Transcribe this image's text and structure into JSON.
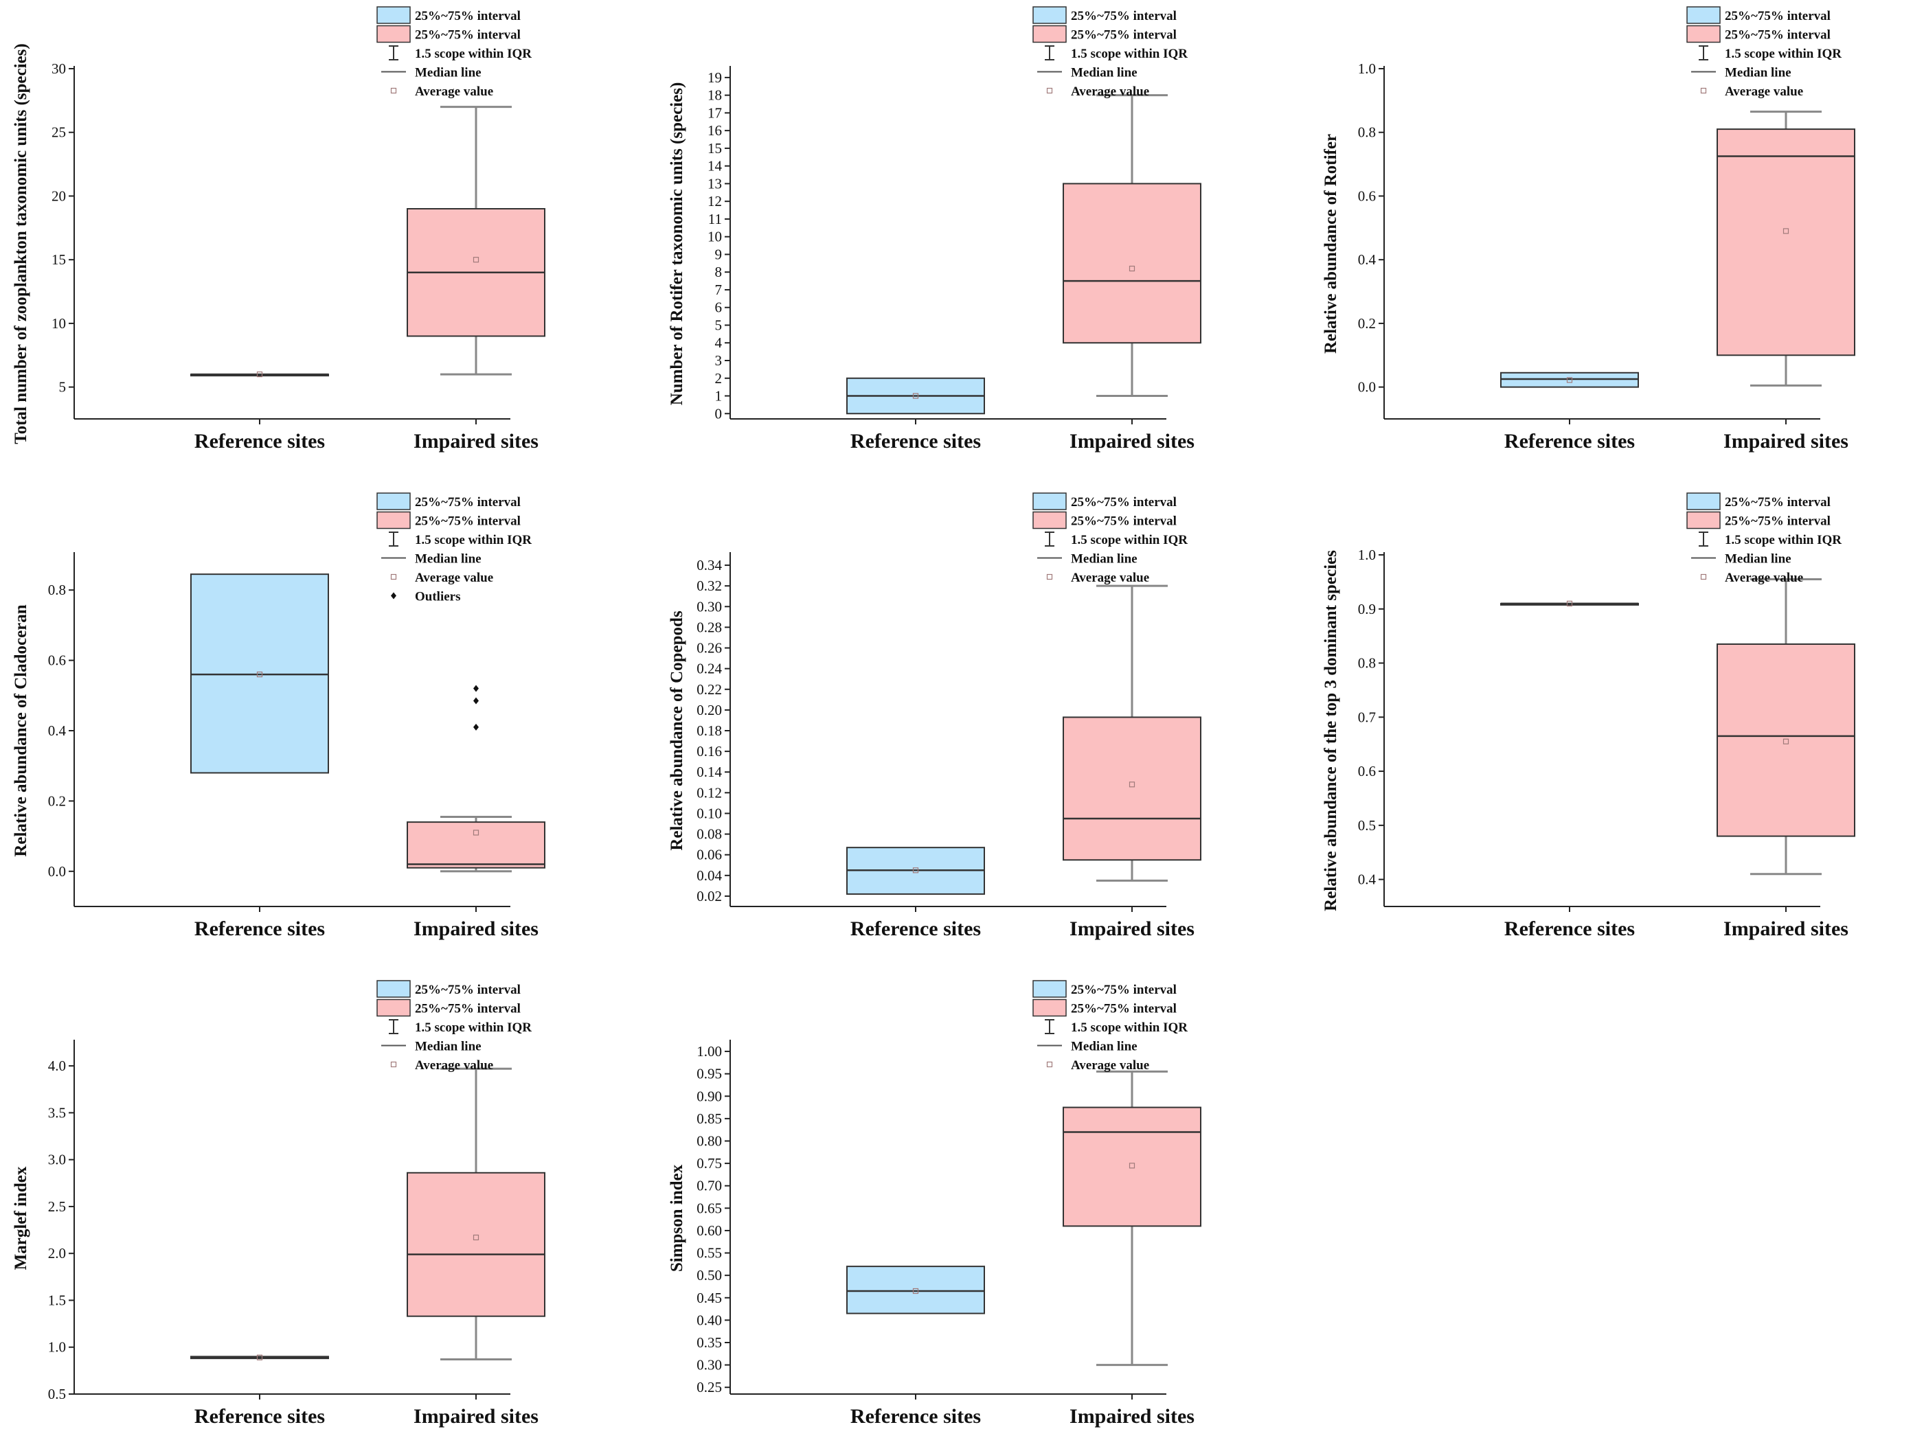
{
  "colors": {
    "reference": "#b9e3fb",
    "impaired": "#fbc0c1",
    "axis": "#222222",
    "whisker": "#888888",
    "median": "#333333",
    "mean": "#a07a7a"
  },
  "chart_data": [
    {
      "type": "box",
      "ylabel": "Total number of zooplankton taxonomic units (species)",
      "categories": [
        "Reference sites",
        "Impaired sites"
      ],
      "ylim": [
        2.5,
        30
      ],
      "yticks": [
        5,
        10,
        15,
        20,
        25,
        30
      ],
      "tick_decimals": 0,
      "boxes": [
        {
          "group": "reference",
          "q1": 6,
          "median": 6,
          "q3": 6,
          "whisker_low": null,
          "whisker_high": null,
          "mean": 6,
          "outliers": []
        },
        {
          "group": "impaired",
          "q1": 9,
          "median": 14,
          "q3": 19,
          "whisker_low": 6,
          "whisker_high": 27,
          "mean": 15,
          "outliers": []
        }
      ],
      "legend": [
        "25%~75% interval",
        "25%~75% interval",
        "1.5 scope within IQR",
        "Median line",
        "Average value"
      ]
    },
    {
      "type": "box",
      "ylabel": "Number of Rotifer taxonomic units (species)",
      "categories": [
        "Reference sites",
        "Impaired sites"
      ],
      "ylim": [
        -0.3,
        19.5
      ],
      "yticks": [
        0,
        1,
        2,
        3,
        4,
        5,
        6,
        7,
        8,
        9,
        10,
        11,
        12,
        13,
        14,
        15,
        16,
        17,
        18,
        19
      ],
      "tick_decimals": 0,
      "boxes": [
        {
          "group": "reference",
          "q1": 0,
          "median": 1,
          "q3": 2,
          "whisker_low": null,
          "whisker_high": null,
          "mean": 1,
          "outliers": []
        },
        {
          "group": "impaired",
          "q1": 4,
          "median": 7.5,
          "q3": 13,
          "whisker_low": 1,
          "whisker_high": 18,
          "mean": 8.2,
          "outliers": []
        }
      ],
      "legend": [
        "25%~75% interval",
        "25%~75% interval",
        "1.5 scope within IQR",
        "Median line",
        "Average value"
      ]
    },
    {
      "type": "box",
      "ylabel": "Relative abundance of Rotifer",
      "categories": [
        "Reference sites",
        "Impaired sites"
      ],
      "ylim": [
        -0.1,
        1.0
      ],
      "yticks": [
        0.0,
        0.2,
        0.4,
        0.6,
        0.8,
        1.0
      ],
      "tick_decimals": 1,
      "boxes": [
        {
          "group": "reference",
          "q1": 0.0,
          "median": 0.025,
          "q3": 0.045,
          "whisker_low": null,
          "whisker_high": null,
          "mean": 0.022,
          "outliers": []
        },
        {
          "group": "impaired",
          "q1": 0.1,
          "median": 0.725,
          "q3": 0.81,
          "whisker_low": 0.005,
          "whisker_high": 0.865,
          "mean": 0.49,
          "outliers": []
        }
      ],
      "legend": [
        "25%~75% interval",
        "25%~75% interval",
        "1.5 scope within IQR",
        "Median line",
        "Average value"
      ]
    },
    {
      "type": "box",
      "ylabel": "Relative abundance of Cladoceran",
      "categories": [
        "Reference sites",
        "Impaired sites"
      ],
      "ylim": [
        -0.1,
        0.9
      ],
      "yticks": [
        0.0,
        0.2,
        0.4,
        0.6,
        0.8
      ],
      "tick_decimals": 1,
      "boxes": [
        {
          "group": "reference",
          "q1": 0.28,
          "median": 0.56,
          "q3": 0.845,
          "whisker_low": null,
          "whisker_high": null,
          "mean": 0.56,
          "outliers": []
        },
        {
          "group": "impaired",
          "q1": 0.01,
          "median": 0.02,
          "q3": 0.14,
          "whisker_low": 0.0,
          "whisker_high": 0.155,
          "mean": 0.11,
          "outliers": [
            0.41,
            0.485,
            0.52
          ]
        }
      ],
      "legend": [
        "25%~75% interval",
        "25%~75% interval",
        "1.5 scope within IQR",
        "Median line",
        "Average value",
        "Outliers"
      ]
    },
    {
      "type": "box",
      "ylabel": "Relative abundance of Copepods",
      "categories": [
        "Reference sites",
        "Impaired sites"
      ],
      "ylim": [
        0.01,
        0.35
      ],
      "yticks": [
        0.02,
        0.04,
        0.06,
        0.08,
        0.1,
        0.12,
        0.14,
        0.16,
        0.18,
        0.2,
        0.22,
        0.24,
        0.26,
        0.28,
        0.3,
        0.32,
        0.34
      ],
      "tick_decimals": 2,
      "boxes": [
        {
          "group": "reference",
          "q1": 0.022,
          "median": 0.045,
          "q3": 0.067,
          "whisker_low": null,
          "whisker_high": null,
          "mean": 0.045,
          "outliers": []
        },
        {
          "group": "impaired",
          "q1": 0.055,
          "median": 0.095,
          "q3": 0.193,
          "whisker_low": 0.035,
          "whisker_high": 0.32,
          "mean": 0.128,
          "outliers": []
        }
      ],
      "legend": [
        "25%~75% interval",
        "25%~75% interval",
        "1.5 scope within IQR",
        "Median line",
        "Average value"
      ]
    },
    {
      "type": "box",
      "ylabel": "Relative abundance of the top 3 dominant species",
      "categories": [
        "Reference sites",
        "Impaired sites"
      ],
      "ylim": [
        0.35,
        1.0
      ],
      "yticks": [
        0.4,
        0.5,
        0.6,
        0.7,
        0.8,
        0.9,
        1.0
      ],
      "tick_decimals": 1,
      "boxes": [
        {
          "group": "reference",
          "q1": 0.91,
          "median": 0.91,
          "q3": 0.91,
          "whisker_low": null,
          "whisker_high": null,
          "mean": 0.91,
          "outliers": []
        },
        {
          "group": "impaired",
          "q1": 0.48,
          "median": 0.665,
          "q3": 0.835,
          "whisker_low": 0.41,
          "whisker_high": 0.955,
          "mean": 0.655,
          "outliers": []
        }
      ],
      "legend": [
        "25%~75% interval",
        "25%~75% interval",
        "1.5 scope within IQR",
        "Median line",
        "Average value"
      ]
    },
    {
      "type": "box",
      "ylabel": "Marglef index",
      "categories": [
        "Reference sites",
        "Impaired sites"
      ],
      "ylim": [
        0.5,
        4.25
      ],
      "yticks": [
        0.5,
        1.0,
        1.5,
        2.0,
        2.5,
        3.0,
        3.5,
        4.0
      ],
      "tick_decimals": 1,
      "boxes": [
        {
          "group": "reference",
          "q1": 0.88,
          "median": 0.89,
          "q3": 0.9,
          "whisker_low": null,
          "whisker_high": null,
          "mean": 0.89,
          "outliers": []
        },
        {
          "group": "impaired",
          "q1": 1.33,
          "median": 1.99,
          "q3": 2.86,
          "whisker_low": 0.87,
          "whisker_high": 3.97,
          "mean": 2.17,
          "outliers": []
        }
      ],
      "legend": [
        "25%~75% interval",
        "25%~75% interval",
        "1.5 scope within IQR",
        "Median line",
        "Average value"
      ]
    },
    {
      "type": "box",
      "ylabel": "Simpson index",
      "categories": [
        "Reference sites",
        "Impaired sites"
      ],
      "ylim": [
        0.235,
        1.02
      ],
      "yticks": [
        0.25,
        0.3,
        0.35,
        0.4,
        0.45,
        0.5,
        0.55,
        0.6,
        0.65,
        0.7,
        0.75,
        0.8,
        0.85,
        0.9,
        0.95,
        1.0
      ],
      "tick_decimals": 2,
      "boxes": [
        {
          "group": "reference",
          "q1": 0.415,
          "median": 0.465,
          "q3": 0.52,
          "whisker_low": null,
          "whisker_high": null,
          "mean": 0.465,
          "outliers": []
        },
        {
          "group": "impaired",
          "q1": 0.61,
          "median": 0.82,
          "q3": 0.875,
          "whisker_low": 0.3,
          "whisker_high": 0.955,
          "mean": 0.745,
          "outliers": []
        }
      ],
      "legend": [
        "25%~75% interval",
        "25%~75% interval",
        "1.5 scope within IQR",
        "Median line",
        "Average value"
      ]
    }
  ]
}
